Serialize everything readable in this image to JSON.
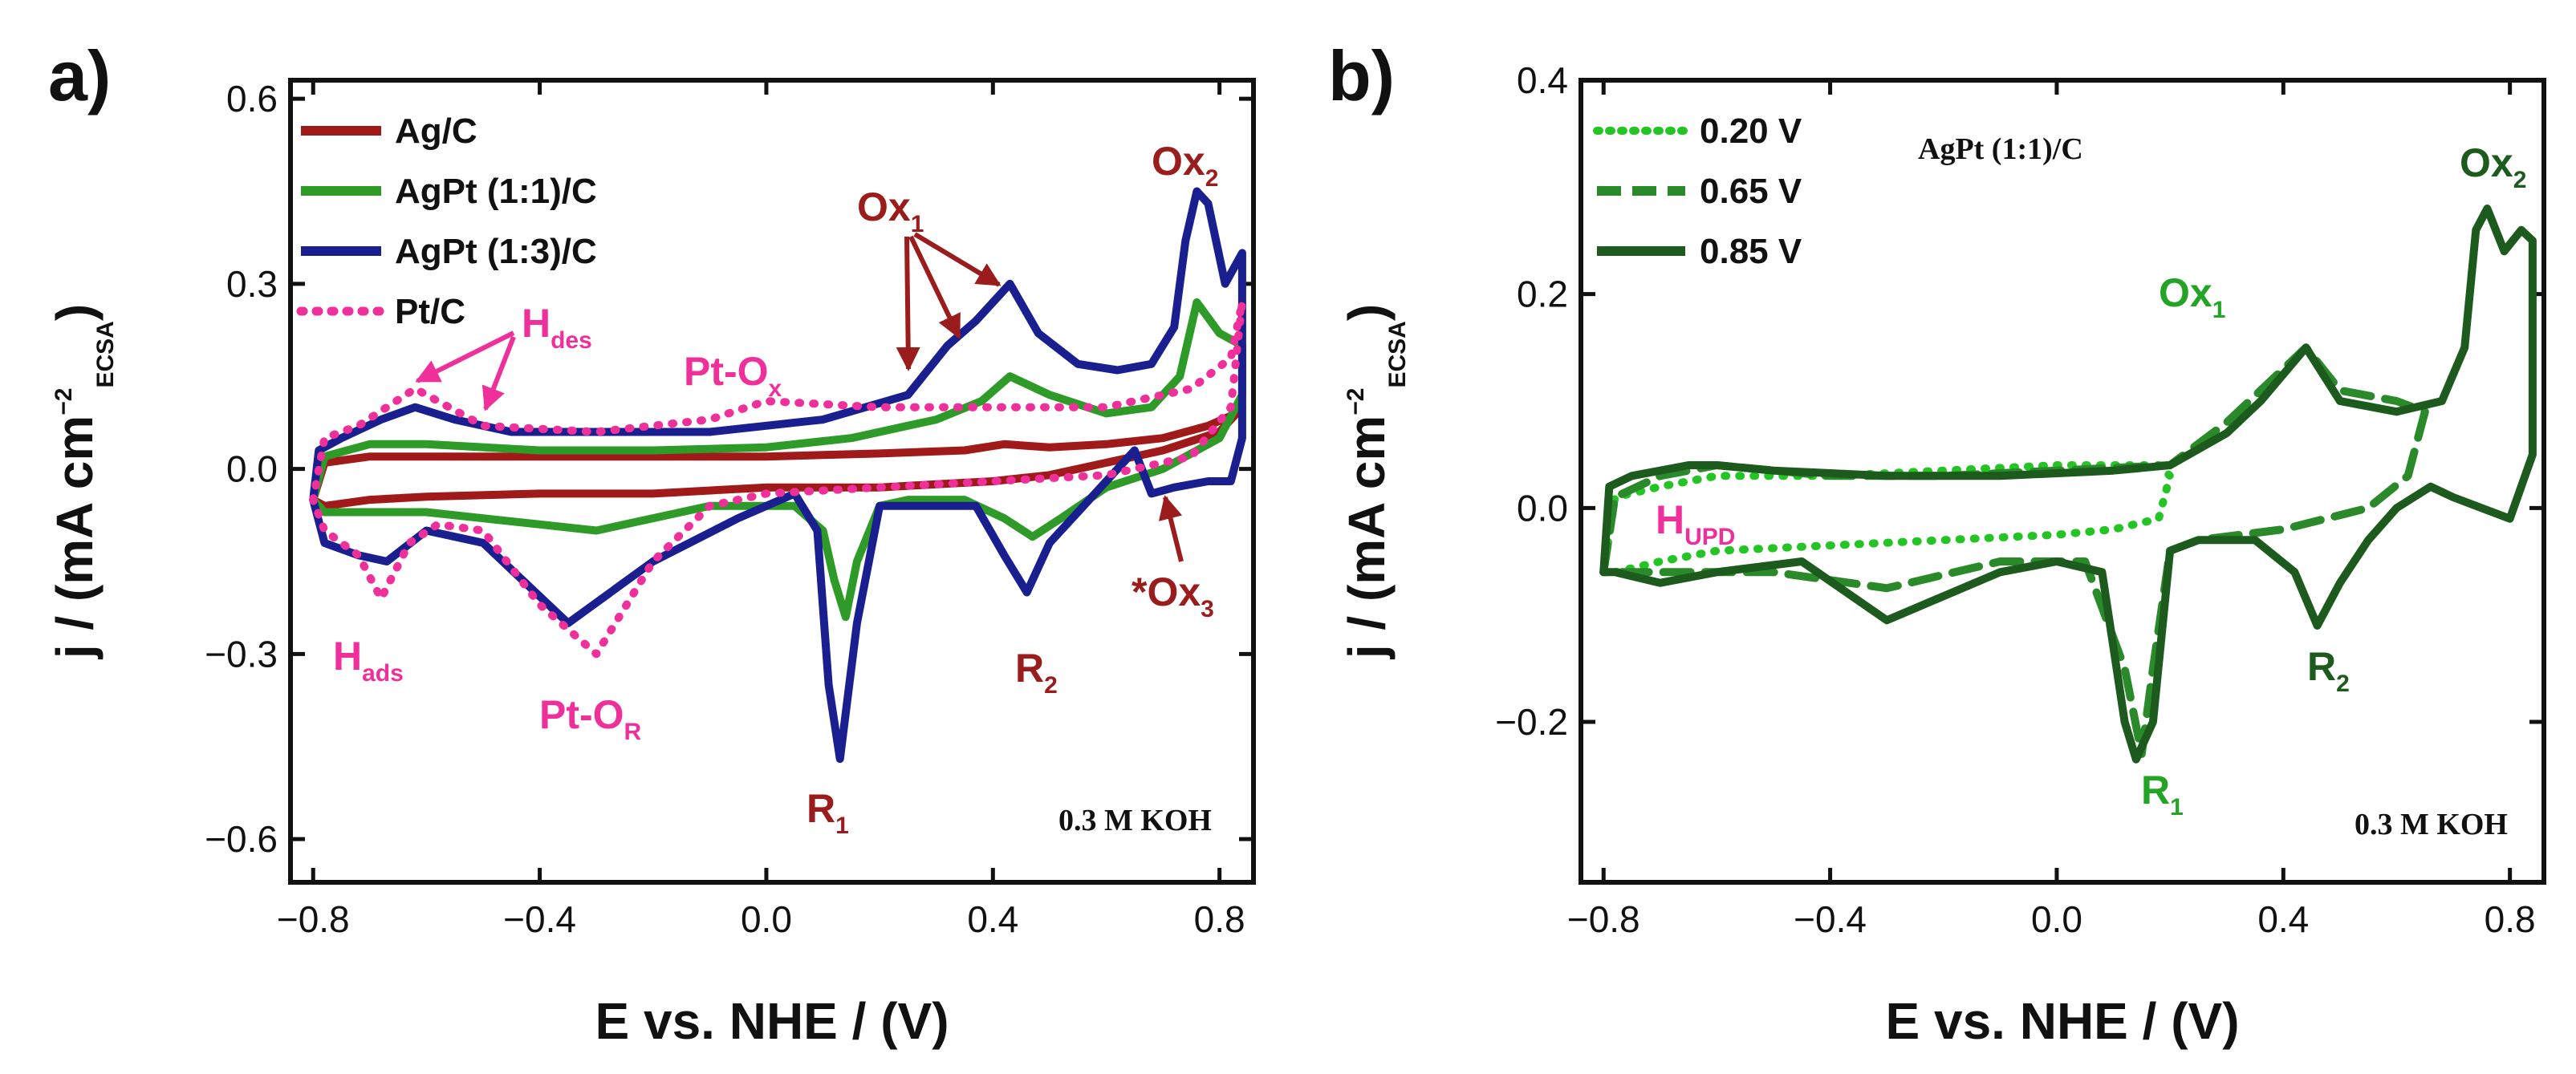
{
  "colors": {
    "ag": "#a01a1a",
    "agpt11": "#2e9a28",
    "agpt13": "#1a1f8f",
    "pt": "#f0309a",
    "dark_green": "#1d5a1d",
    "light_green": "#24c424",
    "mid_green": "#2a8a2a",
    "dark_red": "#9b1c1c",
    "pink": "#f0309a"
  },
  "chart_data": [
    {
      "panel": "a)",
      "type": "line",
      "xlabel": "E vs. NHE / (V)",
      "ylabel_main": "j / (mA cm",
      "ylabel_sup": "−2",
      "ylabel_sub": "ECSA",
      "ylabel_close": ")",
      "xlim": [
        -0.84,
        0.86
      ],
      "ylim": [
        -0.67,
        0.63
      ],
      "xticks": [
        -0.8,
        -0.4,
        0.0,
        0.4,
        0.8
      ],
      "xtick_labels": [
        "−0.8",
        "−0.4",
        "0.0",
        "0.4",
        "0.8"
      ],
      "yticks": [
        -0.6,
        -0.3,
        0.0,
        0.3,
        0.6
      ],
      "ytick_labels": [
        "−0.6",
        "−0.3",
        "0.0",
        "0.3",
        "0.6"
      ],
      "note": "0.3 M KOH",
      "legend": [
        "Ag/C",
        "AgPt (1:1)/C",
        "AgPt (1:3)/C",
        "Pt/C"
      ],
      "series": [
        {
          "name": "Ag/C",
          "color_key": "ag",
          "style": "solid",
          "x": [
            -0.8,
            -0.78,
            -0.7,
            -0.6,
            -0.4,
            -0.2,
            0.0,
            0.2,
            0.35,
            0.42,
            0.5,
            0.6,
            0.7,
            0.78,
            0.83,
            0.84,
            0.8,
            0.7,
            0.6,
            0.5,
            0.4,
            0.3,
            0.2,
            0.0,
            -0.2,
            -0.4,
            -0.6,
            -0.7,
            -0.78,
            -0.8
          ],
          "y": [
            -0.05,
            0.01,
            0.02,
            0.02,
            0.02,
            0.02,
            0.02,
            0.025,
            0.03,
            0.04,
            0.035,
            0.04,
            0.05,
            0.07,
            0.09,
            0.1,
            0.06,
            0.03,
            0.01,
            -0.01,
            -0.02,
            -0.025,
            -0.03,
            -0.03,
            -0.04,
            -0.04,
            -0.045,
            -0.05,
            -0.06,
            -0.05
          ]
        },
        {
          "name": "AgPt (1:1)/C",
          "color_key": "agpt11",
          "style": "solid",
          "x": [
            -0.8,
            -0.78,
            -0.7,
            -0.6,
            -0.4,
            -0.2,
            0.0,
            0.15,
            0.3,
            0.38,
            0.43,
            0.5,
            0.6,
            0.68,
            0.73,
            0.76,
            0.8,
            0.84,
            0.84,
            0.8,
            0.7,
            0.6,
            0.52,
            0.47,
            0.42,
            0.35,
            0.25,
            0.2,
            0.16,
            0.14,
            0.12,
            0.1,
            0.05,
            -0.1,
            -0.3,
            -0.4,
            -0.5,
            -0.6,
            -0.7,
            -0.78,
            -0.8
          ],
          "y": [
            -0.05,
            0.02,
            0.04,
            0.04,
            0.03,
            0.03,
            0.035,
            0.05,
            0.08,
            0.11,
            0.15,
            0.12,
            0.09,
            0.1,
            0.15,
            0.27,
            0.22,
            0.2,
            0.12,
            0.05,
            0.0,
            -0.03,
            -0.08,
            -0.11,
            -0.08,
            -0.05,
            -0.05,
            -0.06,
            -0.15,
            -0.24,
            -0.18,
            -0.1,
            -0.06,
            -0.06,
            -0.1,
            -0.09,
            -0.08,
            -0.07,
            -0.07,
            -0.07,
            -0.05
          ]
        },
        {
          "name": "AgPt (1:3)/C",
          "color_key": "agpt13",
          "style": "solid",
          "x": [
            -0.8,
            -0.79,
            -0.75,
            -0.68,
            -0.62,
            -0.55,
            -0.45,
            -0.3,
            -0.1,
            0.1,
            0.25,
            0.32,
            0.37,
            0.43,
            0.48,
            0.55,
            0.62,
            0.68,
            0.72,
            0.74,
            0.76,
            0.78,
            0.81,
            0.84,
            0.84,
            0.82,
            0.78,
            0.72,
            0.68,
            0.65,
            0.62,
            0.55,
            0.5,
            0.46,
            0.42,
            0.37,
            0.3,
            0.2,
            0.16,
            0.13,
            0.11,
            0.09,
            0.05,
            -0.05,
            -0.2,
            -0.35,
            -0.5,
            -0.6,
            -0.67,
            -0.72,
            -0.78,
            -0.8
          ],
          "y": [
            -0.05,
            0.03,
            0.05,
            0.08,
            0.1,
            0.08,
            0.06,
            0.06,
            0.06,
            0.08,
            0.12,
            0.2,
            0.24,
            0.3,
            0.22,
            0.17,
            0.16,
            0.17,
            0.23,
            0.37,
            0.45,
            0.43,
            0.3,
            0.35,
            0.05,
            -0.02,
            -0.02,
            -0.03,
            -0.04,
            0.03,
            0.0,
            -0.07,
            -0.12,
            -0.2,
            -0.14,
            -0.06,
            -0.06,
            -0.06,
            -0.25,
            -0.47,
            -0.35,
            -0.1,
            -0.04,
            -0.08,
            -0.15,
            -0.25,
            -0.12,
            -0.1,
            -0.15,
            -0.14,
            -0.12,
            -0.05
          ]
        },
        {
          "name": "Pt/C",
          "color_key": "pt",
          "style": "dotted",
          "x": [
            -0.8,
            -0.78,
            -0.72,
            -0.62,
            -0.5,
            -0.3,
            -0.1,
            0.0,
            0.2,
            0.4,
            0.6,
            0.75,
            0.82,
            0.84,
            0.82,
            0.75,
            0.6,
            0.4,
            0.2,
            0.0,
            -0.1,
            -0.2,
            -0.3,
            -0.4,
            -0.5,
            -0.58,
            -0.63,
            -0.68,
            -0.72,
            -0.78,
            -0.8
          ],
          "y": [
            -0.05,
            0.05,
            0.07,
            0.13,
            0.07,
            0.06,
            0.08,
            0.11,
            0.1,
            0.1,
            0.1,
            0.13,
            0.18,
            0.27,
            0.1,
            0.02,
            -0.01,
            -0.02,
            -0.03,
            -0.04,
            -0.06,
            -0.15,
            -0.3,
            -0.22,
            -0.1,
            -0.09,
            -0.12,
            -0.21,
            -0.14,
            -0.1,
            -0.05
          ]
        }
      ]
    },
    {
      "panel": "b)",
      "type": "line",
      "xlabel": "E vs. NHE / (V)",
      "ylabel_main": "j / (mA cm",
      "ylabel_sup": "−2",
      "ylabel_sub": "ECSA",
      "ylabel_close": ")",
      "xlim": [
        -0.84,
        0.86
      ],
      "ylim": [
        -0.35,
        0.4
      ],
      "xticks": [
        -0.8,
        -0.4,
        0.0,
        0.4,
        0.8
      ],
      "xtick_labels": [
        "−0.8",
        "−0.4",
        "0.0",
        "0.4",
        "0.8"
      ],
      "yticks": [
        -0.2,
        0.0,
        0.2,
        0.4
      ],
      "ytick_labels": [
        "−0.2",
        "0.0",
        "0.2",
        "0.4"
      ],
      "note": "0.3 M KOH",
      "sample": "AgPt (1:1)/C",
      "legend": [
        "0.20 V",
        "0.65 V",
        "0.85 V"
      ],
      "series": [
        {
          "name": "0.20 V",
          "color_key": "light_green",
          "style": "dotted",
          "x": [
            -0.8,
            -0.78,
            -0.7,
            -0.6,
            -0.4,
            -0.2,
            0.0,
            0.1,
            0.18,
            0.2,
            0.18,
            0.1,
            0.0,
            -0.2,
            -0.4,
            -0.6,
            -0.7,
            -0.78,
            -0.8
          ],
          "y": [
            -0.06,
            0.01,
            0.02,
            0.03,
            0.03,
            0.035,
            0.04,
            0.04,
            0.04,
            0.03,
            -0.01,
            -0.02,
            -0.025,
            -0.03,
            -0.035,
            -0.04,
            -0.05,
            -0.06,
            -0.06
          ]
        },
        {
          "name": "0.65 V",
          "color_key": "mid_green",
          "style": "dashed",
          "x": [
            -0.8,
            -0.78,
            -0.7,
            -0.6,
            -0.4,
            -0.2,
            0.0,
            0.2,
            0.3,
            0.38,
            0.44,
            0.5,
            0.6,
            0.65,
            0.62,
            0.55,
            0.4,
            0.25,
            0.2,
            0.17,
            0.15,
            0.12,
            0.05,
            -0.1,
            -0.3,
            -0.5,
            -0.7,
            -0.8
          ],
          "y": [
            -0.06,
            0.01,
            0.03,
            0.04,
            0.03,
            0.03,
            0.035,
            0.04,
            0.08,
            0.12,
            0.15,
            0.11,
            0.1,
            0.09,
            0.03,
            0.0,
            -0.02,
            -0.03,
            -0.04,
            -0.15,
            -0.23,
            -0.15,
            -0.05,
            -0.05,
            -0.075,
            -0.06,
            -0.06,
            -0.06
          ]
        },
        {
          "name": "0.85 V",
          "color_key": "dark_green",
          "style": "solid",
          "x": [
            -0.8,
            -0.79,
            -0.75,
            -0.65,
            -0.6,
            -0.5,
            -0.3,
            -0.1,
            0.1,
            0.2,
            0.3,
            0.36,
            0.44,
            0.5,
            0.6,
            0.68,
            0.72,
            0.74,
            0.76,
            0.79,
            0.82,
            0.84,
            0.84,
            0.8,
            0.7,
            0.66,
            0.6,
            0.55,
            0.5,
            0.46,
            0.42,
            0.35,
            0.25,
            0.2,
            0.17,
            0.14,
            0.12,
            0.08,
            0.0,
            -0.1,
            -0.3,
            -0.45,
            -0.6,
            -0.7,
            -0.78,
            -0.8
          ],
          "y": [
            -0.06,
            0.02,
            0.03,
            0.04,
            0.04,
            0.035,
            0.03,
            0.03,
            0.035,
            0.04,
            0.07,
            0.1,
            0.15,
            0.1,
            0.09,
            0.1,
            0.15,
            0.26,
            0.28,
            0.24,
            0.26,
            0.25,
            0.05,
            -0.01,
            0.01,
            0.02,
            0.0,
            -0.03,
            -0.07,
            -0.11,
            -0.06,
            -0.03,
            -0.03,
            -0.04,
            -0.2,
            -0.235,
            -0.2,
            -0.06,
            -0.05,
            -0.06,
            -0.105,
            -0.05,
            -0.06,
            -0.07,
            -0.06,
            -0.06
          ]
        }
      ]
    }
  ],
  "annotations_a": {
    "ox1": "Ox",
    "ox1_sub": "1",
    "ox2": "Ox",
    "ox2_sub": "2",
    "ox3": "*Ox",
    "ox3_sub": "3",
    "r1": "R",
    "r1_sub": "1",
    "r2": "R",
    "r2_sub": "2",
    "hdes": "H",
    "hdes_sub": "des",
    "hads": "H",
    "hads_sub": "ads",
    "ptox": "Pt-O",
    "ptox_sub": "x",
    "ptor": "Pt-O",
    "ptor_sub": "R"
  },
  "annotations_b": {
    "ox1": "Ox",
    "ox1_sub": "1",
    "ox2": "Ox",
    "ox2_sub": "2",
    "r1": "R",
    "r1_sub": "1",
    "r2": "R",
    "r2_sub": "2",
    "hupd": "H",
    "hupd_sub": "UPD"
  }
}
